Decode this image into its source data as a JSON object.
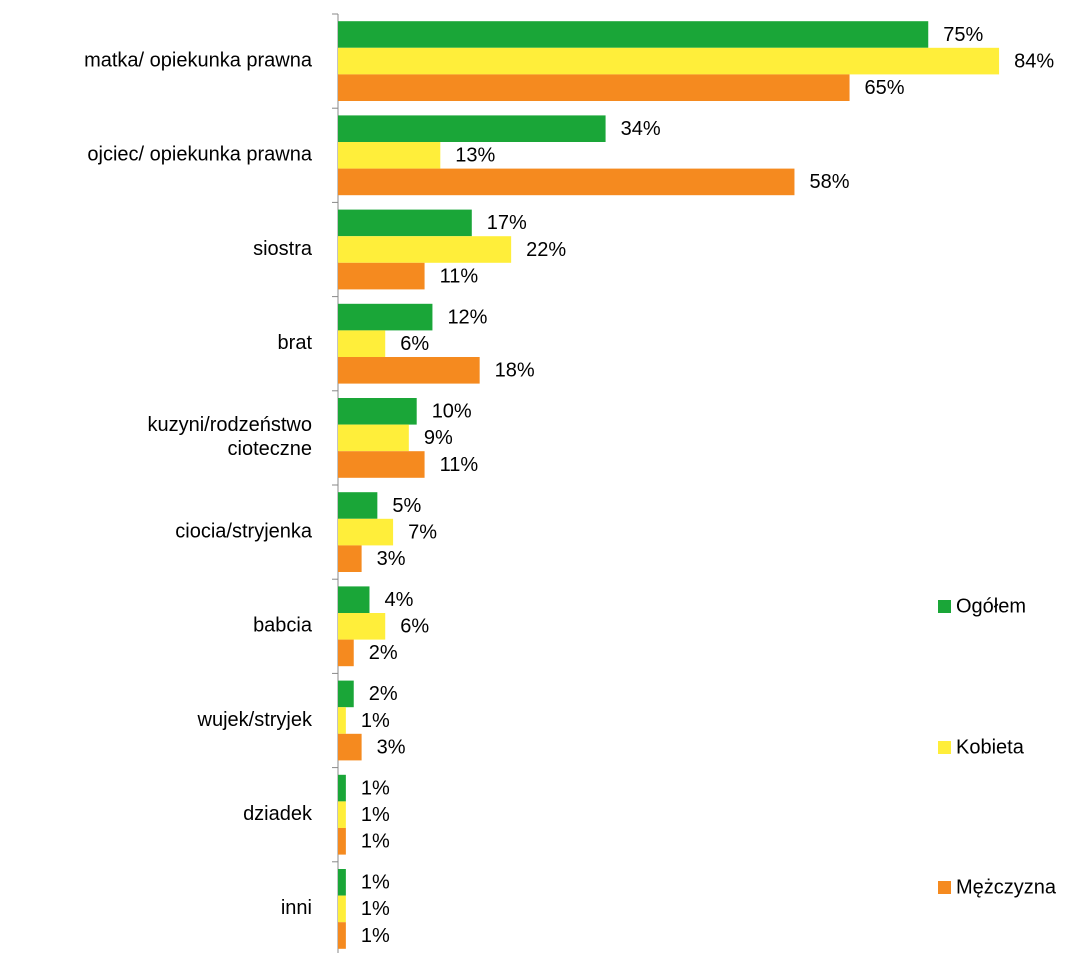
{
  "chart_data": {
    "type": "bar",
    "orientation": "horizontal",
    "categories": [
      "matka/ opiekunka prawna",
      "ojciec/ opiekunka prawna",
      "siostra",
      "brat",
      "kuzyni/rodzeństwo\ncioteczne",
      "ciocia/stryjenka",
      "babcia",
      "wujek/stryjek",
      "dziadek",
      "inni"
    ],
    "series": [
      {
        "name": "Ogółem",
        "color": "#1aa638",
        "values": [
          75,
          34,
          17,
          12,
          10,
          5,
          4,
          2,
          1,
          1
        ],
        "value_labels": [
          "75%",
          "34%",
          "17%",
          "12%",
          "10%",
          "5%",
          "4%",
          "2%",
          "1%",
          "1%"
        ]
      },
      {
        "name": "Kobieta",
        "color": "#ffee3a",
        "values": [
          84,
          13,
          22,
          6,
          9,
          7,
          6,
          1,
          1,
          1
        ],
        "value_labels": [
          "84%",
          "13%",
          "22%",
          "6%",
          "9%",
          "7%",
          "6%",
          "1%",
          "1%",
          "1%"
        ]
      },
      {
        "name": "Mężczyzna",
        "color": "#f58a1f",
        "values": [
          65,
          58,
          11,
          18,
          11,
          3,
          2,
          3,
          1,
          1
        ],
        "value_labels": [
          "65%",
          "58%",
          "11%",
          "18%",
          "11%",
          "3%",
          "2%",
          "3%",
          "1%",
          "1%"
        ]
      }
    ],
    "legend": "right"
  }
}
